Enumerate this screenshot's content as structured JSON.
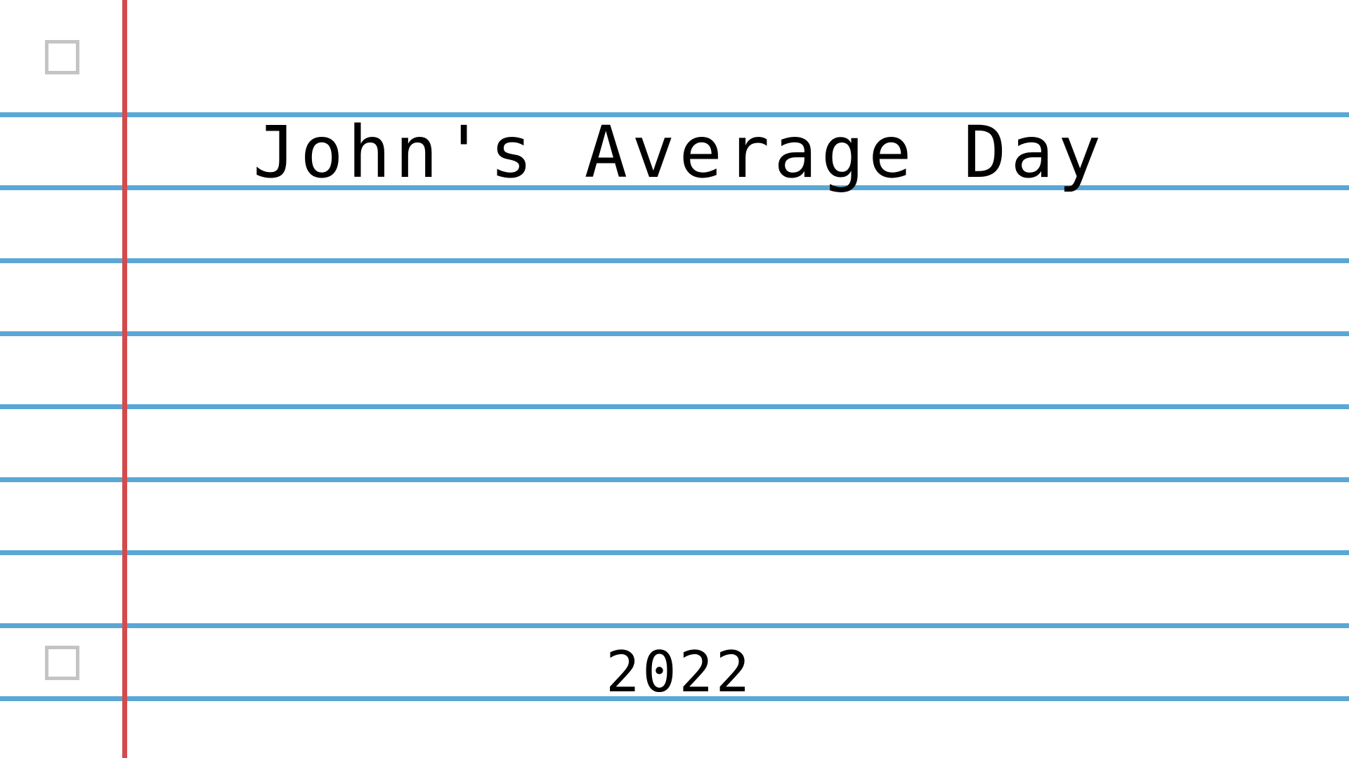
{
  "page": {
    "title": "John's Average Day",
    "year": "2022"
  },
  "colors": {
    "ruled_line": "#5aa7d6",
    "margin_line": "#d24c4e",
    "punch_hole": "#c4c4c4",
    "text": "#000000"
  }
}
